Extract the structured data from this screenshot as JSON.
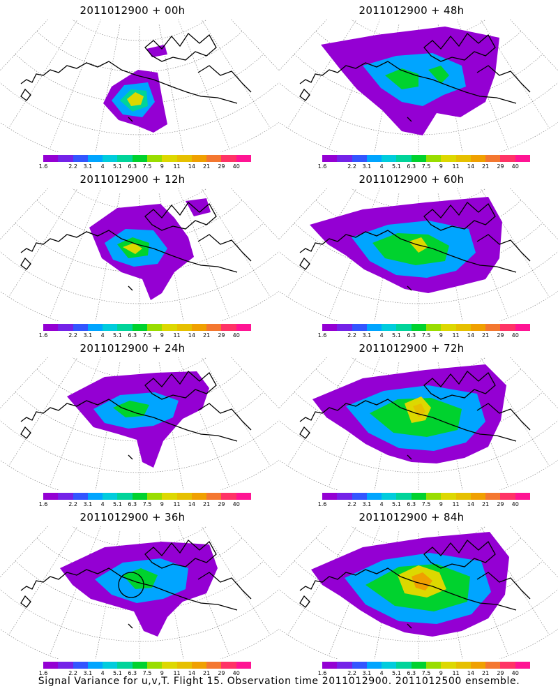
{
  "panels": [
    {
      "id": "p00",
      "title": "2011012900 + 00h",
      "col": 0,
      "row": 0
    },
    {
      "id": "p48",
      "title": "2011012900 + 48h",
      "col": 1,
      "row": 0
    },
    {
      "id": "p12",
      "title": "2011012900 + 12h",
      "col": 0,
      "row": 1
    },
    {
      "id": "p60",
      "title": "2011012900 + 60h",
      "col": 1,
      "row": 1
    },
    {
      "id": "p24",
      "title": "2011012900 + 24h",
      "col": 0,
      "row": 2
    },
    {
      "id": "p72",
      "title": "2011012900 + 72h",
      "col": 1,
      "row": 2
    },
    {
      "id": "p36",
      "title": "2011012900 + 36h",
      "col": 0,
      "row": 3
    },
    {
      "id": "p84",
      "title": "2011012900 + 84h",
      "col": 1,
      "row": 3
    }
  ],
  "colorbar": {
    "labels": [
      "1.6",
      "2.2",
      "3.1",
      "4",
      "5.1",
      "6.3",
      "7.5",
      "9",
      "11",
      "14",
      "21",
      "29",
      "40"
    ],
    "colors": [
      "#9400d3",
      "#7422e8",
      "#3355ff",
      "#00a5ff",
      "#00ccdd",
      "#00d49a",
      "#00d22e",
      "#99dd00",
      "#ddd800",
      "#e6c000",
      "#f0a000",
      "#f47730",
      "#ff3366",
      "#ff1493"
    ]
  },
  "caption": "Signal Variance for u,v,T. Flight 15. Observation time 2011012900. 2011012500 ensemble."
}
